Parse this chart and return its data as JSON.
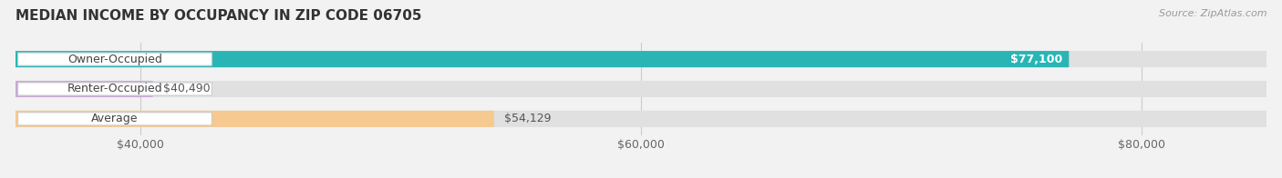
{
  "title": "MEDIAN INCOME BY OCCUPANCY IN ZIP CODE 06705",
  "source": "Source: ZipAtlas.com",
  "categories": [
    "Owner-Occupied",
    "Renter-Occupied",
    "Average"
  ],
  "values": [
    77100,
    40490,
    54129
  ],
  "labels": [
    "$77,100",
    "$40,490",
    "$54,129"
  ],
  "bar_colors": [
    "#2ab5b5",
    "#c9a8d4",
    "#f5c990"
  ],
  "xmin": 35000,
  "xmax": 85000,
  "xticks": [
    40000,
    60000,
    80000
  ],
  "xticklabels": [
    "$40,000",
    "$60,000",
    "$80,000"
  ],
  "background_color": "#f2f2f2",
  "bar_bg_color": "#e0e0e0",
  "title_fontsize": 11,
  "source_fontsize": 8,
  "label_fontsize": 9,
  "tick_fontsize": 9,
  "bar_height": 0.55,
  "bar_label_inside": [
    true,
    false,
    false
  ],
  "bar_label_color_inside": "#ffffff",
  "bar_label_color_outside": "#555555"
}
